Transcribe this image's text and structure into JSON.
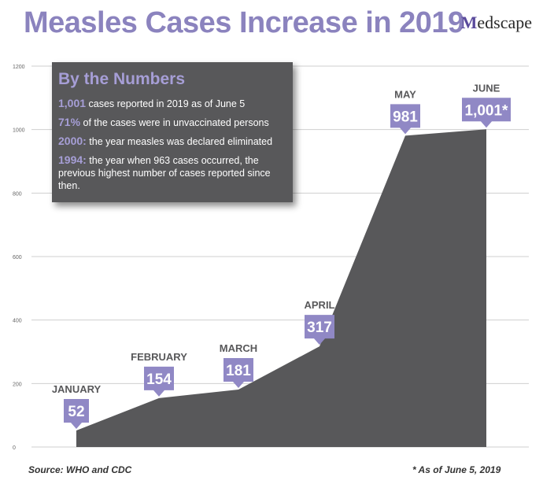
{
  "header": {
    "title": "Measles Cases Increase in 2019",
    "brand_initial": "M",
    "brand_rest": "edscape"
  },
  "infobox": {
    "heading": "By the Numbers",
    "facts": [
      {
        "highlight": "1,001",
        "text": " cases reported in 2019 as of June 5"
      },
      {
        "highlight": "71%",
        "text": " of the cases were in unvaccinated persons"
      },
      {
        "highlight": "2000:",
        "text": " the year measles was declared eliminated"
      },
      {
        "highlight": "1994:",
        "text": " the year when 963 cases occurred, the previous highest number of cases reported since then."
      }
    ]
  },
  "chart_data": {
    "type": "area",
    "categories": [
      "JANUARY",
      "FEBRUARY",
      "MARCH",
      "APRIL",
      "MAY",
      "JUNE"
    ],
    "values": [
      52,
      154,
      181,
      317,
      981,
      1001
    ],
    "value_labels": [
      "52",
      "154",
      "181",
      "317",
      "981",
      "1,001*"
    ],
    "title": "Measles Cases Increase in 2019",
    "xlabel": "",
    "ylabel": "",
    "ylim": [
      0,
      1200
    ],
    "yticks": [
      0,
      200,
      400,
      600,
      800,
      1000,
      1200
    ],
    "grid": true,
    "colors": {
      "area": "#58585a",
      "label_badge": "#9088c5",
      "month_text": "#58585a",
      "grid": "#cfcfcf",
      "tick_text": "#666666"
    }
  },
  "footer": {
    "source": "Source: WHO and CDC",
    "note": "* As of June 5, 2019"
  }
}
